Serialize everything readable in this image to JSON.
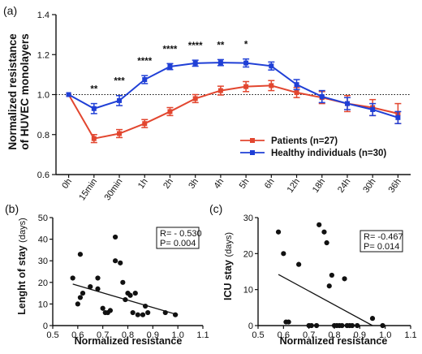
{
  "chart_data": [
    {
      "panel": "(a)",
      "type": "line",
      "ylabel": [
        "Normalized resistance",
        "of HUVEC monolayers"
      ],
      "xlabel": "",
      "categories": [
        "0h",
        "15min",
        "30min",
        "1h",
        "2h",
        "3h",
        "4h",
        "5h",
        "6h",
        "12h",
        "18h",
        "24h",
        "30h",
        "36h"
      ],
      "ylim": [
        0.6,
        1.4
      ],
      "yticks": [
        "0.6",
        "0.8",
        "1.0",
        "1.2",
        "1.4"
      ],
      "reference_line": 1.0,
      "series": [
        {
          "name": "Patients (n=27)",
          "color": "#e2462f",
          "values": [
            1.0,
            0.78,
            0.805,
            0.855,
            0.915,
            0.98,
            1.02,
            1.04,
            1.045,
            1.01,
            0.985,
            0.955,
            0.935,
            0.905
          ],
          "errors": [
            0,
            0.02,
            0.02,
            0.02,
            0.02,
            0.02,
            0.022,
            0.025,
            0.025,
            0.025,
            0.03,
            0.04,
            0.04,
            0.05
          ]
        },
        {
          "name": "Healthy individuals (n=30)",
          "color": "#1f3fd6",
          "values": [
            1.0,
            0.93,
            0.97,
            1.075,
            1.14,
            1.157,
            1.16,
            1.158,
            1.143,
            1.05,
            0.99,
            0.955,
            0.925,
            0.885
          ],
          "errors": [
            0,
            0.025,
            0.025,
            0.02,
            0.015,
            0.015,
            0.015,
            0.02,
            0.02,
            0.025,
            0.03,
            0.03,
            0.03,
            0.03
          ]
        }
      ],
      "significance": [
        {
          "category": "15min",
          "label": "**"
        },
        {
          "category": "30min",
          "label": "***"
        },
        {
          "category": "1h",
          "label": "****"
        },
        {
          "category": "2h",
          "label": "****"
        },
        {
          "category": "3h",
          "label": "****"
        },
        {
          "category": "4h",
          "label": "**"
        },
        {
          "category": "5h",
          "label": "*"
        }
      ],
      "legend_position": "bottom-right"
    },
    {
      "panel": "(b)",
      "type": "scatter",
      "xlabel": "Normalized resistance",
      "ylabel": "Lenght of stay",
      "ylabel_unit": "(days)",
      "xlim": [
        0.5,
        1.1
      ],
      "ylim": [
        0,
        50
      ],
      "xticks": [
        "0.5",
        "0.6",
        "0.7",
        "0.8",
        "0.9",
        "1.0",
        "1.1"
      ],
      "yticks": [
        "0",
        "10",
        "20",
        "30",
        "40",
        "50"
      ],
      "points": [
        [
          0.58,
          22
        ],
        [
          0.61,
          33
        ],
        [
          0.6,
          10
        ],
        [
          0.62,
          15
        ],
        [
          0.61,
          13
        ],
        [
          0.65,
          18
        ],
        [
          0.68,
          22
        ],
        [
          0.68,
          17
        ],
        [
          0.7,
          8
        ],
        [
          0.71,
          6
        ],
        [
          0.72,
          6
        ],
        [
          0.73,
          7
        ],
        [
          0.75,
          41
        ],
        [
          0.75,
          30
        ],
        [
          0.77,
          29
        ],
        [
          0.78,
          20
        ],
        [
          0.8,
          15
        ],
        [
          0.81,
          14
        ],
        [
          0.79,
          12
        ],
        [
          0.83,
          15
        ],
        [
          0.84,
          5
        ],
        [
          0.82,
          6
        ],
        [
          0.86,
          5
        ],
        [
          0.88,
          6
        ],
        [
          0.87,
          9
        ],
        [
          0.95,
          6
        ],
        [
          0.99,
          5
        ]
      ],
      "regression": {
        "x": [
          0.58,
          1.0
        ],
        "y": [
          19.2,
          5.0
        ]
      },
      "stats": {
        "r": "R= - 0.530",
        "p": "P= 0.004"
      }
    },
    {
      "panel": "(c)",
      "type": "scatter",
      "xlabel": "Normalized resistance",
      "ylabel": "ICU stay",
      "ylabel_unit": "(days)",
      "xlim": [
        0.5,
        1.1
      ],
      "ylim": [
        0,
        30
      ],
      "xticks": [
        "0.5",
        "0.6",
        "0.7",
        "0.8",
        "0.9",
        "1.0",
        "1.1"
      ],
      "yticks": [
        "0",
        "10",
        "20",
        "30"
      ],
      "points": [
        [
          0.58,
          26
        ],
        [
          0.6,
          20
        ],
        [
          0.61,
          1
        ],
        [
          0.62,
          1
        ],
        [
          0.66,
          17
        ],
        [
          0.7,
          0
        ],
        [
          0.71,
          0
        ],
        [
          0.73,
          0
        ],
        [
          0.74,
          28
        ],
        [
          0.76,
          26
        ],
        [
          0.77,
          23
        ],
        [
          0.78,
          11
        ],
        [
          0.79,
          14
        ],
        [
          0.8,
          0
        ],
        [
          0.81,
          0
        ],
        [
          0.82,
          0
        ],
        [
          0.83,
          0
        ],
        [
          0.84,
          13
        ],
        [
          0.85,
          0
        ],
        [
          0.86,
          0
        ],
        [
          0.87,
          0
        ],
        [
          0.89,
          0
        ],
        [
          0.95,
          2
        ],
        [
          0.99,
          0
        ]
      ],
      "regression": {
        "x": [
          0.58,
          0.95
        ],
        "y": [
          14.2,
          0
        ]
      },
      "stats": {
        "r": "R= -0.467",
        "p": "P= 0.014"
      }
    }
  ]
}
